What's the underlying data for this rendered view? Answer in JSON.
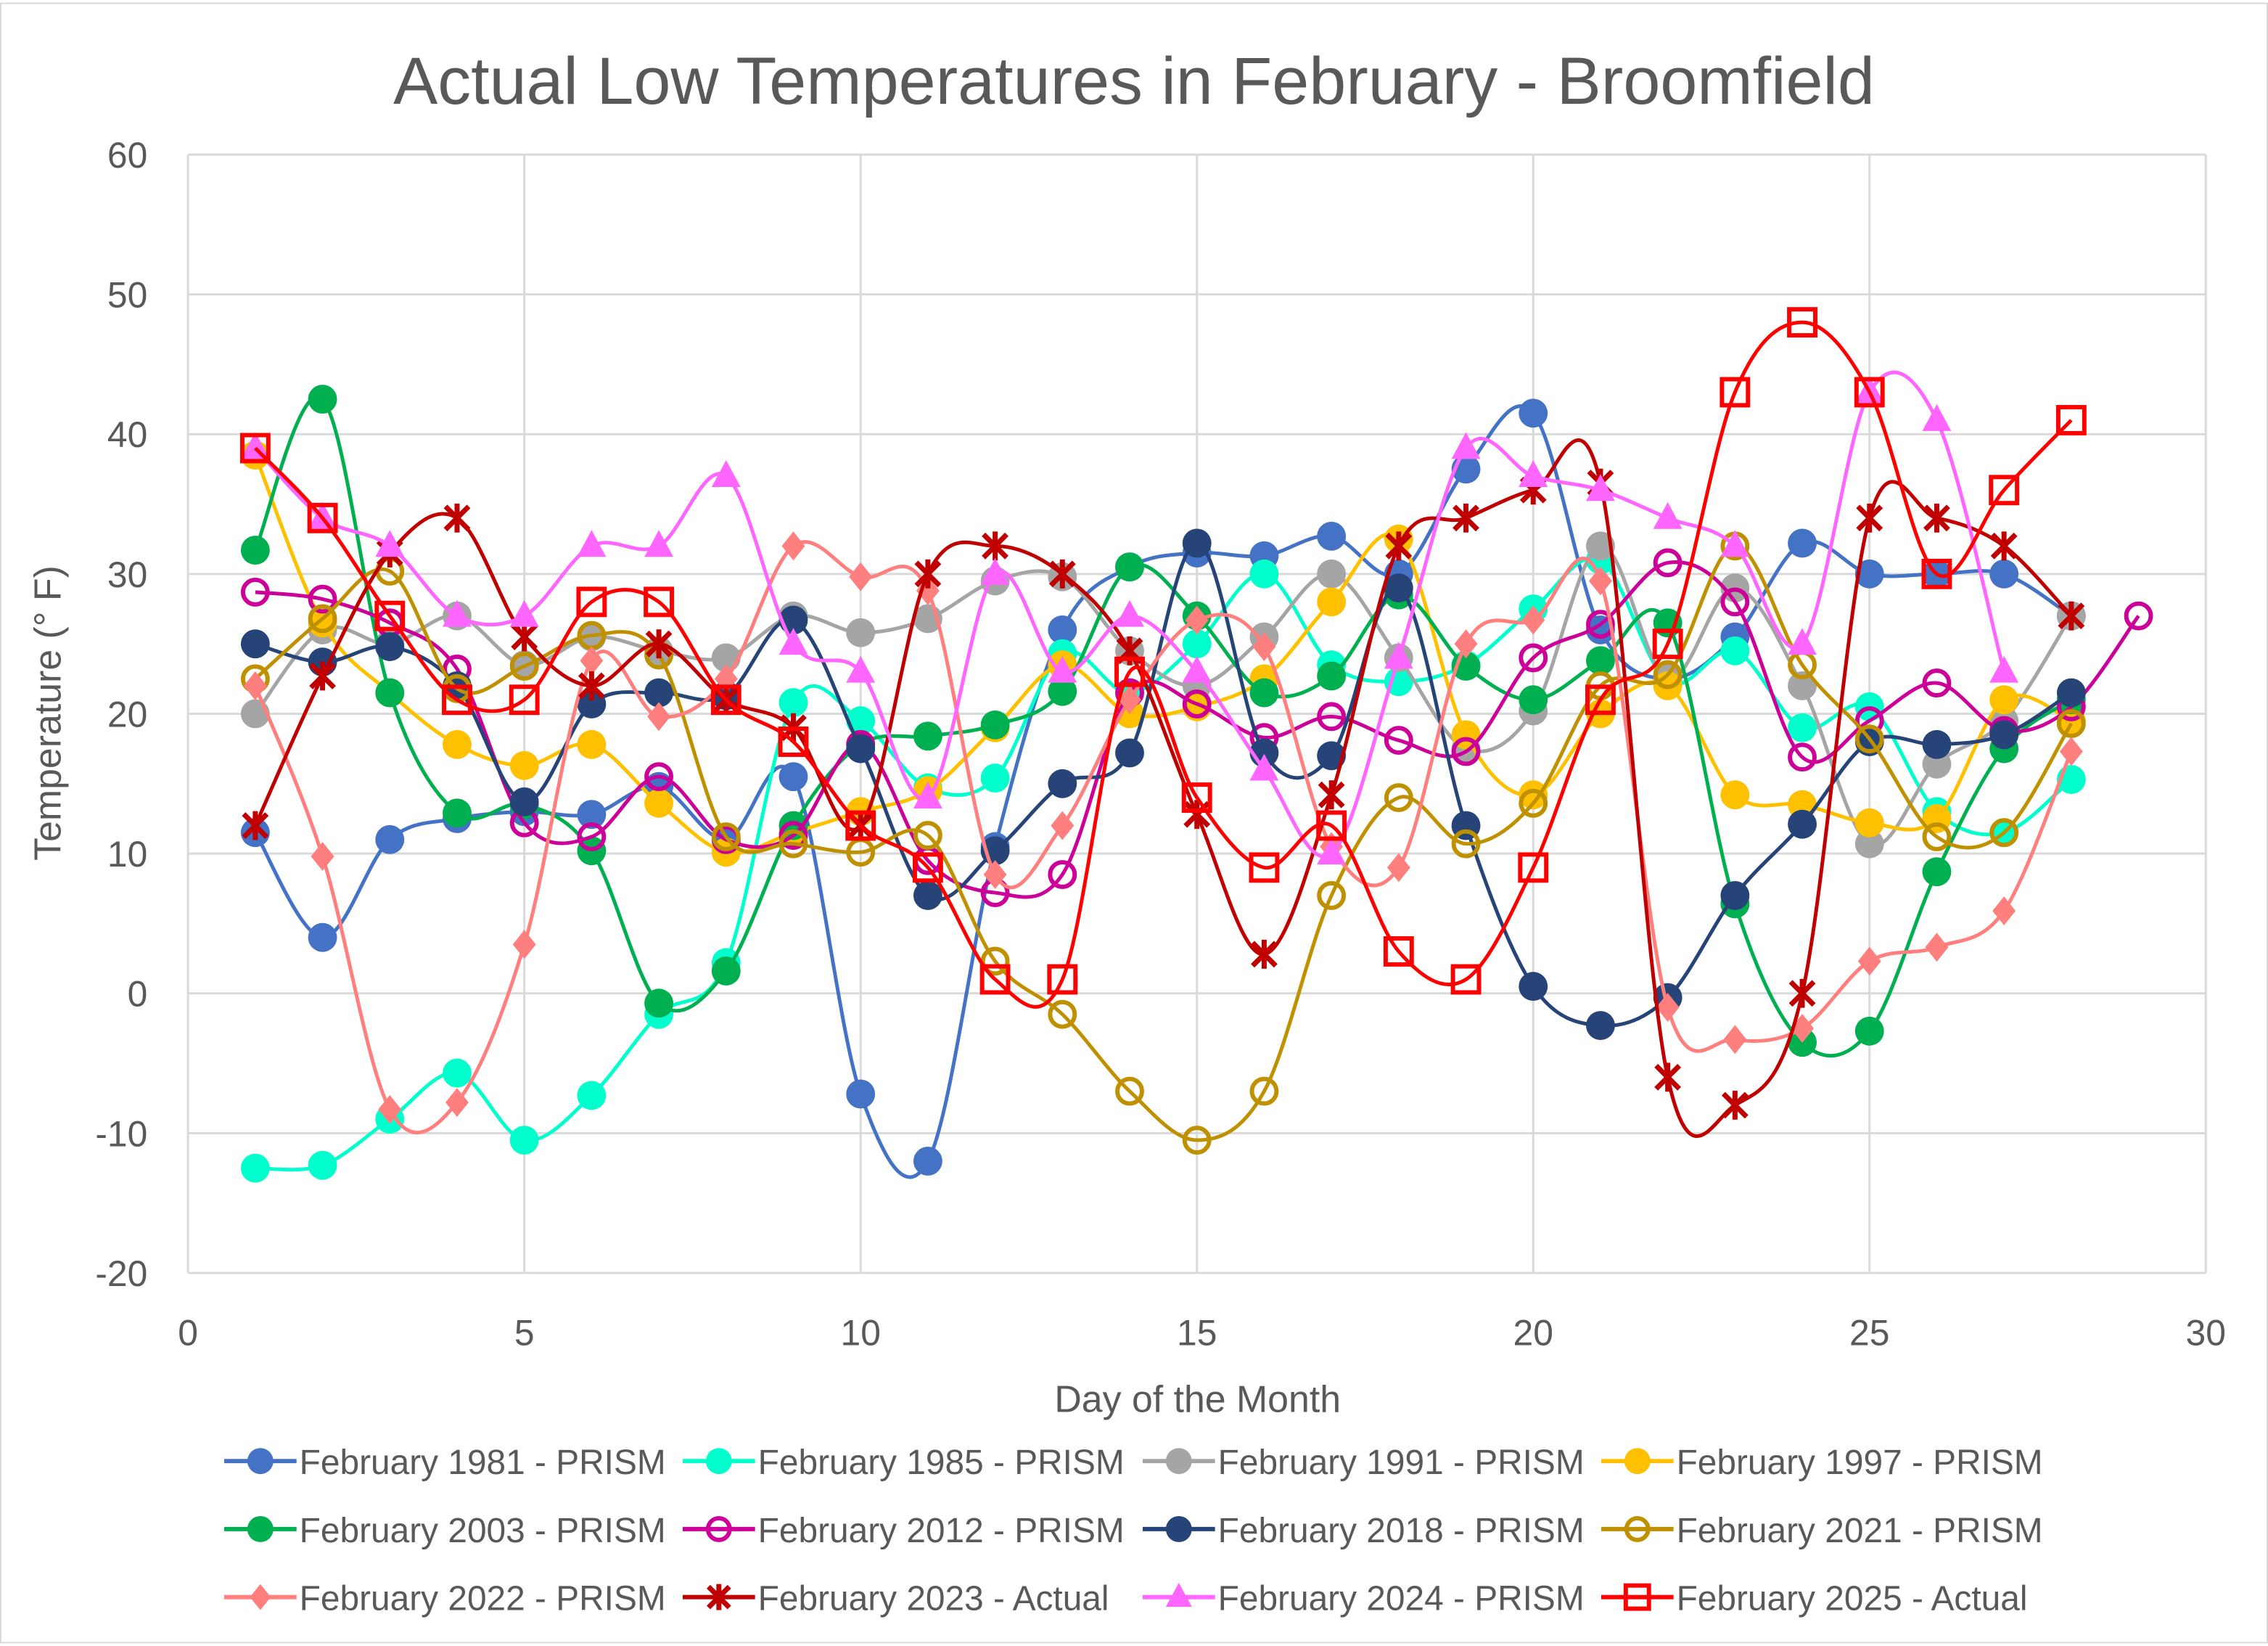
{
  "chart_data": {
    "type": "line",
    "title": "Actual Low Temperatures in February - Broomfield",
    "xlabel": "Day of the Month",
    "ylabel": "Temperature (° F)",
    "xlim": [
      0,
      30
    ],
    "ylim": [
      -20,
      60
    ],
    "x_ticks": [
      0,
      5,
      10,
      15,
      20,
      25,
      30
    ],
    "y_ticks": [
      -20,
      -10,
      0,
      10,
      20,
      30,
      40,
      50,
      60
    ],
    "grid": true,
    "smoothed": true,
    "legend_position": "bottom",
    "series": [
      {
        "name": "February 1981 - PRISM",
        "color": "#4472C4",
        "marker": "circle",
        "values": [
          11.5,
          4,
          11,
          12.5,
          13,
          12.8,
          14.8,
          11,
          15.5,
          -7.2,
          -12,
          10.5,
          26,
          30.5,
          31.5,
          31.3,
          32.7,
          30,
          37.5,
          41.5,
          26,
          22.5,
          25.5,
          32.2,
          30,
          30,
          30,
          27
        ]
      },
      {
        "name": "February 1985 - PRISM",
        "color": "#00FFCC",
        "marker": "circle",
        "values": [
          -12.5,
          -12.3,
          -9,
          -5.7,
          -10.5,
          -7.3,
          -1.5,
          2.2,
          20.8,
          19.5,
          14.7,
          15.4,
          24.3,
          21.5,
          25,
          30,
          23.5,
          22.3,
          23.5,
          27.5,
          31,
          22.3,
          24.5,
          19,
          20.5,
          13,
          11.5,
          15.3
        ]
      },
      {
        "name": "February 1991 - PRISM",
        "color": "#A5A5A5",
        "marker": "circle",
        "values": [
          20,
          26,
          25,
          27,
          23.5,
          25.5,
          24.5,
          24,
          27,
          25.8,
          26.8,
          29.5,
          29.8,
          24.5,
          22,
          25.5,
          30,
          24,
          17.5,
          20.2,
          32,
          22.5,
          29,
          22,
          10.7,
          16.4,
          19.5,
          27
        ]
      },
      {
        "name": "February 1997 - PRISM",
        "color": "#FFC000",
        "marker": "circle",
        "values": [
          38.5,
          26.5,
          21.5,
          17.8,
          16.3,
          17.8,
          13.6,
          10.1,
          11.5,
          13,
          14.5,
          19,
          23.5,
          20,
          20.5,
          22.5,
          28,
          32.5,
          18.5,
          14.2,
          20,
          22,
          14.2,
          13.5,
          12.2,
          12.5,
          21,
          19.5
        ]
      },
      {
        "name": "February 2003 - PRISM",
        "color": "#00B050",
        "marker": "circle",
        "values": [
          31.7,
          42.5,
          21.5,
          12.9,
          13.5,
          10.2,
          -0.7,
          1.6,
          12,
          17.8,
          18.4,
          19.2,
          21.6,
          30.5,
          27,
          21.5,
          22.7,
          28.5,
          23.4,
          21,
          23.8,
          26.5,
          6.4,
          -3.5,
          -2.7,
          8.7,
          17.5,
          21
        ]
      },
      {
        "name": "February 2012 - PRISM",
        "color": "#CC0099",
        "marker": "open-circle",
        "values": [
          28.7,
          28.2,
          26.5,
          23.2,
          12.2,
          11.2,
          15.5,
          11,
          11.3,
          17.8,
          9.5,
          7.2,
          8.5,
          21.5,
          20.7,
          18.3,
          19.8,
          18.1,
          17.3,
          24,
          26.4,
          30.8,
          28,
          16.9,
          19.5,
          22.2,
          18.8,
          20.5,
          27
        ]
      },
      {
        "name": "February 2018 - PRISM",
        "color": "#264478",
        "marker": "circle",
        "values": [
          25,
          23.7,
          24.8,
          22,
          13.7,
          20.7,
          21.5,
          21.3,
          26.7,
          17.5,
          7,
          10.2,
          15,
          17.2,
          32.2,
          17.2,
          17,
          29,
          12,
          0.5,
          -2.3,
          -0.3,
          7,
          12.1,
          18,
          17.8,
          18.5,
          21.5
        ]
      },
      {
        "name": "February 2021 - PRISM",
        "color": "#BF9000",
        "marker": "open-circle",
        "values": [
          22.5,
          26.8,
          30.2,
          21.8,
          23.4,
          25.6,
          24.2,
          11.2,
          10.7,
          10.1,
          11.3,
          2.3,
          -1.5,
          -7,
          -10.5,
          -7,
          7,
          14,
          10.7,
          13.6,
          22,
          22.8,
          32,
          23.5,
          18.2,
          11.2,
          11.5,
          19.3
        ]
      },
      {
        "name": "February 2022 - PRISM",
        "color": "#FF7F7F",
        "marker": "diamond",
        "values": [
          22,
          9.8,
          -8.3,
          -7.8,
          3.5,
          23.8,
          19.8,
          22.5,
          32,
          29.8,
          28.8,
          8.5,
          12,
          21,
          26.7,
          24.8,
          10.5,
          9,
          25,
          26.7,
          29.5,
          -1,
          -3.3,
          -2.5,
          2.3,
          3.3,
          5.9,
          17.3
        ]
      },
      {
        "name": "February 2023 - Actual",
        "color": "#C00000",
        "marker": "star",
        "values": [
          12,
          22.7,
          31.5,
          34,
          25.5,
          22,
          25,
          21,
          19,
          12,
          30,
          32,
          30,
          24.5,
          12.8,
          2.8,
          14.2,
          32,
          34,
          36,
          36.5,
          -6,
          -8,
          0,
          34,
          34,
          32,
          27
        ]
      },
      {
        "name": "February 2024 - PRISM",
        "color": "#FF66FF",
        "marker": "triangle",
        "values": [
          39,
          34,
          32,
          27,
          27,
          32,
          32,
          37,
          25,
          23,
          14,
          30,
          23,
          27,
          23,
          16,
          10,
          24,
          39,
          37,
          36,
          34,
          32,
          25,
          43,
          41,
          23
        ]
      },
      {
        "name": "February 2025 - Actual",
        "color": "#FF0000",
        "marker": "open-square",
        "values": [
          39,
          34,
          27,
          21,
          21,
          28,
          28,
          21,
          18,
          12,
          9,
          1,
          1,
          23,
          14,
          9,
          12,
          3,
          1,
          9,
          21,
          25,
          43,
          48,
          43,
          30,
          36,
          41
        ]
      }
    ]
  }
}
